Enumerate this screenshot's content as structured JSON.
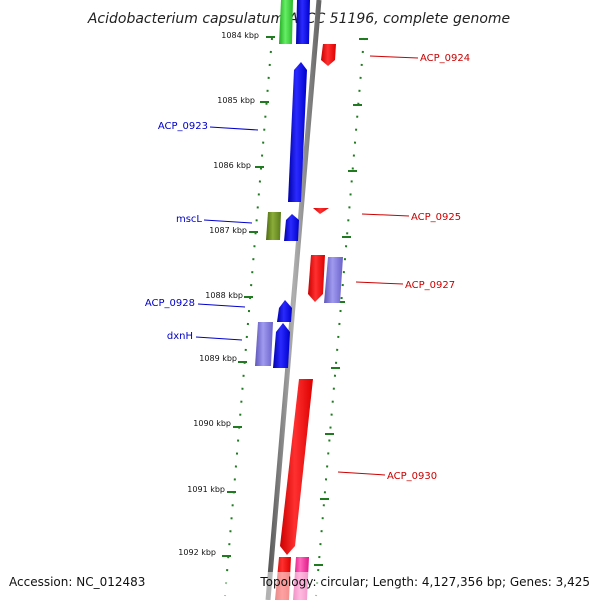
{
  "title": "Acidobacterium capsulatum ATCC 51196, complete genome",
  "footer": {
    "accession": "Accession: NC_012483",
    "topology": "Topology: circular; Length: 4,127,356 bp; Genes: 3,425"
  },
  "colors": {
    "forward": "#0000ee",
    "reverse": "#ff0000",
    "tick": "#207a20",
    "olive": "#6b8a22",
    "lavender": "#7b73cf",
    "green": "#33cc33",
    "pink": "#ff2a99",
    "backbone": "#8a8a8a",
    "label_left": "#0000cc",
    "label_right": "#cc0000"
  },
  "kbp_labels": [
    "1084 kbp",
    "1085 kbp",
    "1086 kbp",
    "1087 kbp",
    "1088 kbp",
    "1089 kbp",
    "1090 kbp",
    "1091 kbp",
    "1092 kbp"
  ],
  "gene_labels": [
    {
      "text": "ACP_0924",
      "side": "right"
    },
    {
      "text": "ACP_0923",
      "side": "left"
    },
    {
      "text": "mscL",
      "side": "left"
    },
    {
      "text": "ACP_0925",
      "side": "right"
    },
    {
      "text": "ACP_0927",
      "side": "right"
    },
    {
      "text": "ACP_0928",
      "side": "left"
    },
    {
      "text": "dxnH",
      "side": "left"
    },
    {
      "text": "ACP_0930",
      "side": "right"
    }
  ]
}
